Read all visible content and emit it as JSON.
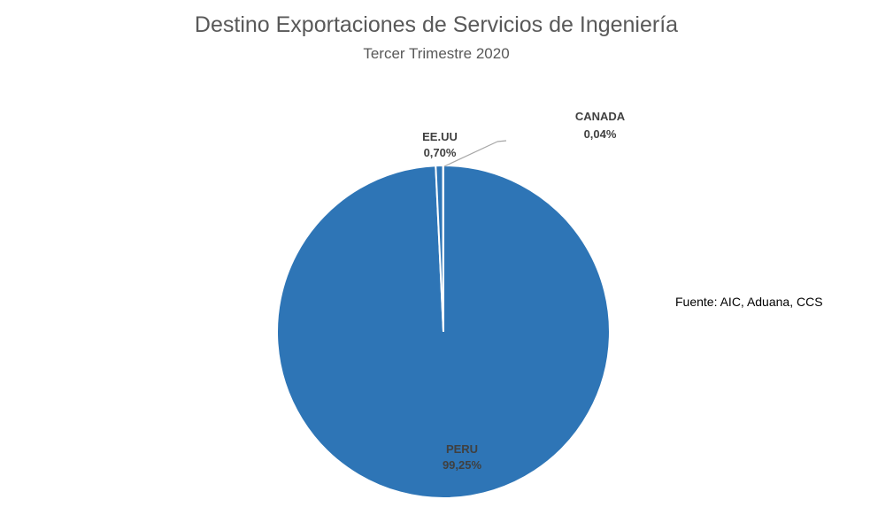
{
  "chart_data": {
    "type": "pie",
    "title": "Destino Exportaciones de Servicios de Ingeniería",
    "subtitle": "Tercer Trimestre 2020",
    "categories": [
      "PERU",
      "EE.UU",
      "CANADA"
    ],
    "values": [
      99.25,
      0.7,
      0.04
    ],
    "value_labels": [
      "99,25%",
      "0,70%",
      "0,04%"
    ],
    "colors": [
      "#2E75B6",
      "#2E75B6",
      "#2E75B6"
    ],
    "legend": "none"
  },
  "source_note": "Fuente: AIC, Aduana, CCS"
}
